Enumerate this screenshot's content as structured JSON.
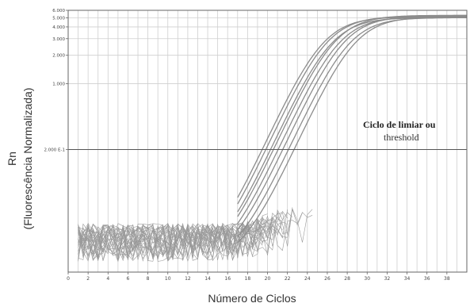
{
  "chart_data": {
    "type": "line",
    "title": "",
    "xlabel": "Número de Ciclos",
    "ylabel_line1": "Rn",
    "ylabel_line2": "(Fluorescência Normalizada)",
    "x_ticks": [
      0,
      2,
      4,
      6,
      8,
      10,
      12,
      14,
      16,
      18,
      20,
      22,
      24,
      26,
      28,
      30,
      32,
      34,
      36,
      38
    ],
    "x_tick_labels": [
      "0",
      "2",
      "4",
      "6",
      "8",
      "10",
      "12",
      "14",
      "16",
      "18",
      "20",
      "22",
      "24",
      "26",
      "28",
      "30",
      "32",
      "34",
      "36",
      "38"
    ],
    "xlim": [
      0,
      40
    ],
    "y_scale": "log",
    "ylim": [
      0.01,
      6.0
    ],
    "y_ticks": [
      {
        "value": 6.0,
        "label": "6.000"
      },
      {
        "value": 5.0,
        "label": "5.000"
      },
      {
        "value": 4.0,
        "label": "4.000"
      },
      {
        "value": 3.0,
        "label": "3.000"
      },
      {
        "value": 2.0,
        "label": "2.000"
      },
      {
        "value": 1.0,
        "label": "1.000"
      },
      {
        "value": 0.2,
        "label": "2.000 E-1"
      }
    ],
    "threshold": 0.2,
    "grid": true,
    "curve_color": "#8c8c8c",
    "annotation_line1": "Ciclo de limiar ou",
    "annotation_line2": "threshold",
    "series": [
      {
        "ct": 22.2,
        "plateau": 5.1
      },
      {
        "ct": 22.6,
        "plateau": 5.2
      },
      {
        "ct": 23.0,
        "plateau": 5.0
      },
      {
        "ct": 23.4,
        "plateau": 5.3
      },
      {
        "ct": 23.8,
        "plateau": 5.1
      },
      {
        "ct": 24.3,
        "plateau": 5.2
      },
      {
        "ct": 24.8,
        "plateau": 5.0
      },
      {
        "ct": 25.4,
        "plateau": 5.1
      }
    ],
    "noise_traces": 30
  }
}
